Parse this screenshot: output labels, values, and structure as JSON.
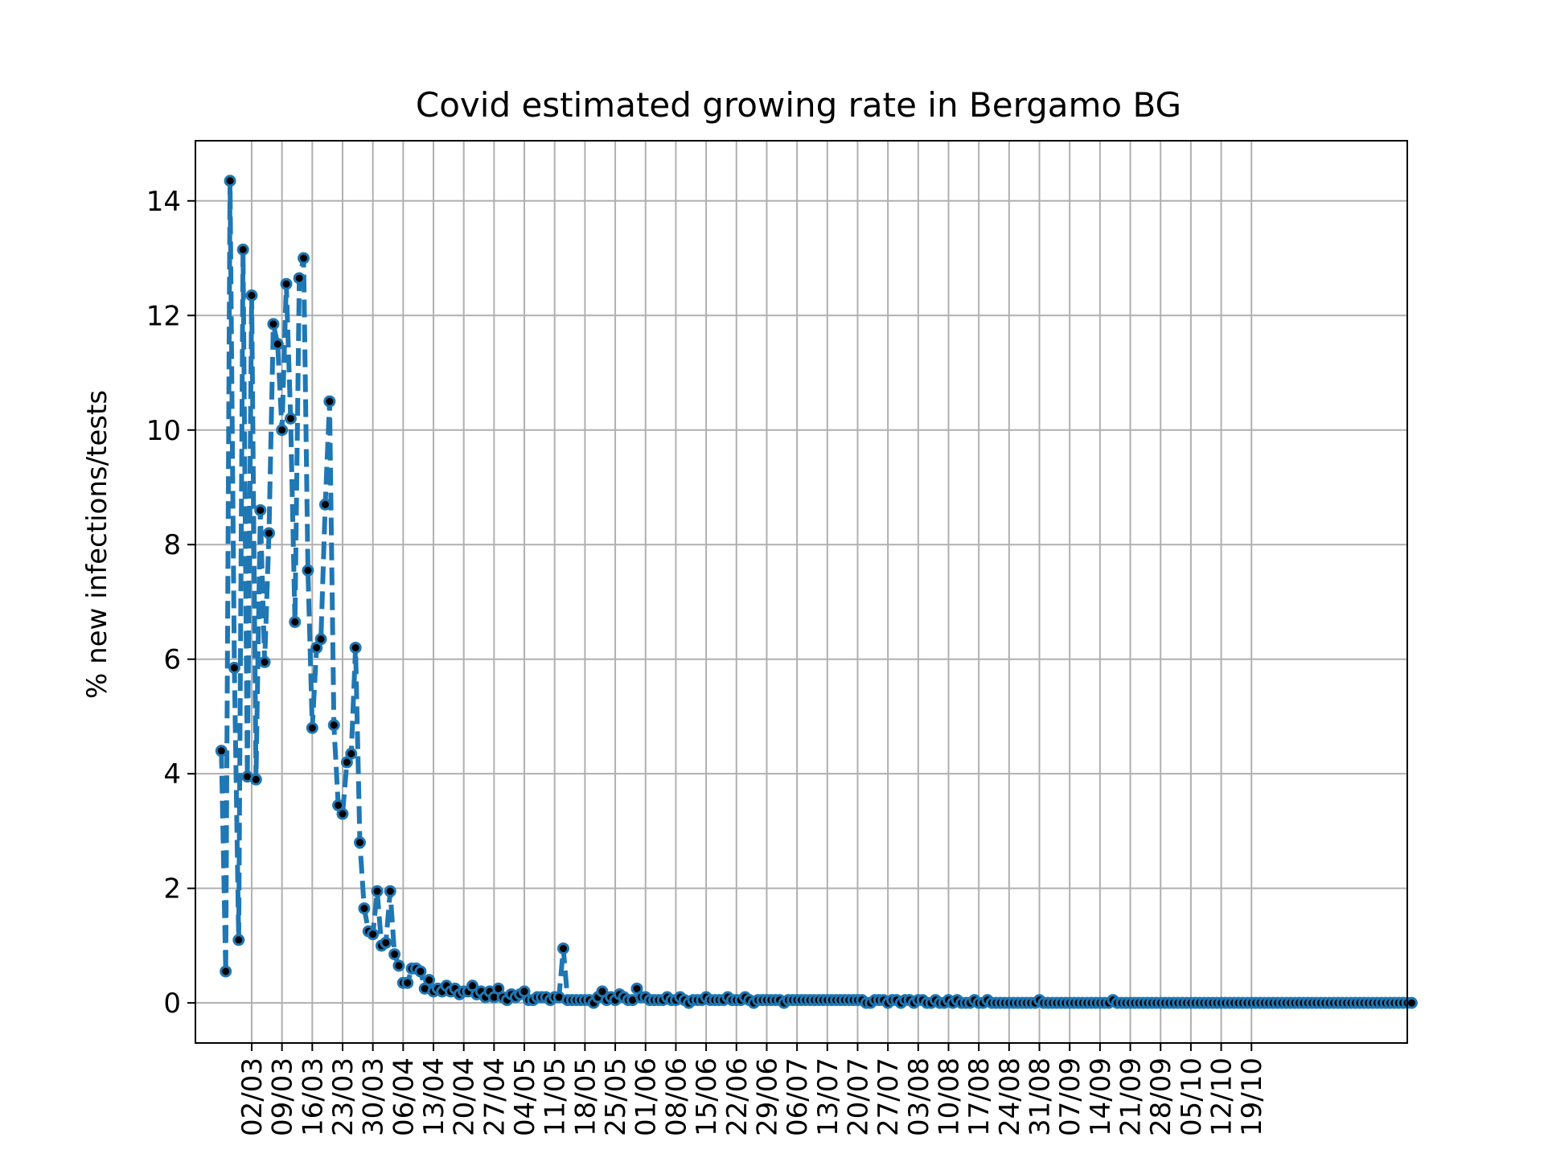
{
  "chart_data": {
    "type": "line",
    "title": "Covid estimated growing rate in Bergamo BG",
    "xlabel": "",
    "ylabel": "% new infections/tests",
    "x_start_date": "2020-02-24",
    "y_ticks": [
      0,
      2,
      4,
      6,
      8,
      10,
      12,
      14
    ],
    "ylim": [
      -0.7,
      15.05
    ],
    "xlim": [
      -6,
      274
    ],
    "grid": true,
    "line_style": "dashed",
    "marker_style": "dot",
    "x_tick_labels": [
      "02/03",
      "09/03",
      "16/03",
      "23/03",
      "30/03",
      "06/04",
      "13/04",
      "20/04",
      "27/04",
      "04/05",
      "11/05",
      "18/05",
      "25/05",
      "01/06",
      "08/06",
      "15/06",
      "22/06",
      "29/06",
      "06/07",
      "13/07",
      "20/07",
      "27/07",
      "03/08",
      "10/08",
      "17/08",
      "24/08",
      "31/08",
      "07/09",
      "14/09",
      "21/09",
      "28/09",
      "05/10",
      "12/10",
      "19/10"
    ],
    "colors": {
      "line": "#1f77b4",
      "marker_center": "#000000",
      "grid": "#b0b0b0"
    },
    "series": [
      {
        "name": "",
        "values": [
          4.4,
          0.55,
          14.35,
          5.85,
          1.1,
          13.15,
          3.95,
          12.35,
          3.9,
          8.6,
          5.95,
          8.2,
          11.85,
          11.5,
          10.0,
          12.55,
          10.2,
          6.65,
          12.65,
          13.0,
          7.55,
          4.8,
          6.2,
          6.35,
          8.7,
          10.5,
          4.85,
          3.45,
          3.3,
          4.2,
          4.35,
          6.2,
          2.8,
          1.65,
          1.25,
          1.2,
          1.95,
          1.0,
          1.05,
          1.95,
          0.85,
          0.65,
          0.35,
          0.35,
          0.6,
          0.6,
          0.55,
          0.25,
          0.4,
          0.2,
          0.25,
          0.2,
          0.3,
          0.2,
          0.25,
          0.15,
          0.2,
          0.2,
          0.3,
          0.15,
          0.2,
          0.1,
          0.2,
          0.1,
          0.25,
          0.1,
          0.05,
          0.15,
          0.1,
          0.15,
          0.2,
          0.05,
          0.05,
          0.1,
          0.1,
          0.1,
          0.05,
          0.1,
          0.1,
          0.95,
          0.05,
          0.05,
          0.05,
          0.05,
          0.05,
          0.05,
          0.0,
          0.1,
          0.2,
          0.05,
          0.1,
          0.05,
          0.15,
          0.1,
          0.05,
          0.05,
          0.25,
          0.1,
          0.1,
          0.05,
          0.05,
          0.05,
          0.05,
          0.1,
          0.05,
          0.05,
          0.1,
          0.05,
          0.0,
          0.05,
          0.05,
          0.05,
          0.1,
          0.05,
          0.05,
          0.05,
          0.05,
          0.1,
          0.05,
          0.05,
          0.05,
          0.1,
          0.05,
          0.0,
          0.05,
          0.05,
          0.05,
          0.05,
          0.05,
          0.05,
          0.0,
          0.05,
          0.05,
          0.05,
          0.05,
          0.05,
          0.05,
          0.05,
          0.05,
          0.05,
          0.05,
          0.05,
          0.05,
          0.05,
          0.05,
          0.05,
          0.05,
          0.05,
          0.05,
          0.0,
          0.0,
          0.05,
          0.05,
          0.05,
          0.0,
          0.05,
          0.05,
          0.0,
          0.05,
          0.05,
          0.0,
          0.05,
          0.05,
          0.0,
          0.0,
          0.05,
          0.0,
          0.0,
          0.05,
          0.0,
          0.05,
          0.0,
          0.0,
          0.0,
          0.05,
          0.0,
          0.0,
          0.05,
          0.0,
          0.0,
          0.0,
          0.0,
          0.0,
          0.0,
          0.0,
          0.0,
          0.0,
          0.0,
          0.0,
          0.05,
          0.0,
          0.0,
          0.0,
          0.0,
          0.0,
          0.0,
          0.0,
          0.0,
          0.0,
          0.0,
          0.0,
          0.0,
          0.0,
          0.0,
          0.0,
          0.0,
          0.05,
          0.0,
          0.0,
          0.0,
          0.0,
          0.0,
          0.0,
          0.0,
          0.0,
          0.0,
          0.0,
          0.0,
          0.0,
          0.0,
          0.0,
          0.0,
          0.0,
          0.0,
          0.0,
          0.0,
          0.0,
          0.0,
          0.0,
          0.0,
          0.0,
          0.0,
          0.0,
          0.0,
          0.0,
          0.0,
          0.0,
          0.0,
          0.0,
          0.0,
          0.0,
          0.0,
          0.0,
          0.0,
          0.0,
          0.0,
          0.0,
          0.0,
          0.0,
          0.0,
          0.0,
          0.0,
          0.0,
          0.0,
          0.0,
          0.0,
          0.0,
          0.0,
          0.0,
          0.0,
          0.0,
          0.0,
          0.0,
          0.0,
          0.0,
          0.0,
          0.0,
          0.0,
          0.0,
          0.0,
          0.0,
          0.0,
          0.0,
          0.0,
          0.0,
          0.0
        ]
      }
    ]
  }
}
